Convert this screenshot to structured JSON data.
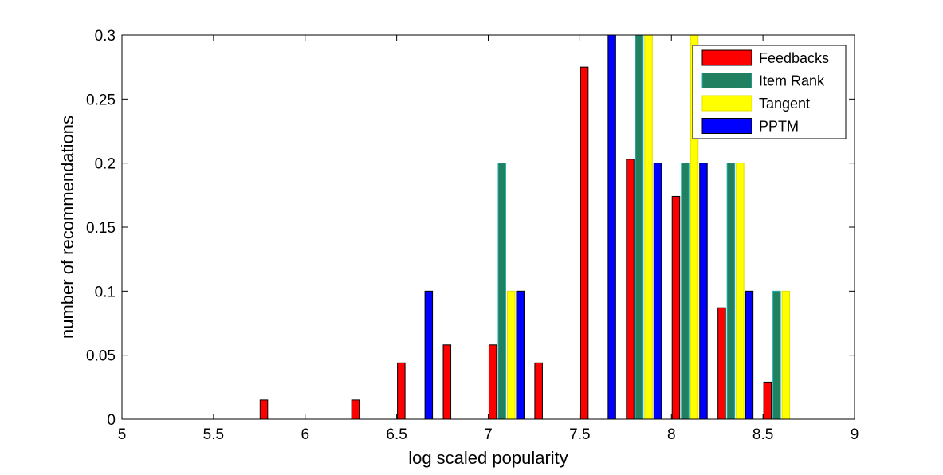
{
  "chart_data": {
    "type": "bar",
    "title": "",
    "xlabel": "log scaled popularity",
    "ylabel": "number of recommendations",
    "xlim": [
      5,
      9
    ],
    "ylim": [
      0,
      0.3
    ],
    "x_ticks": [
      "5",
      "5.5",
      "6",
      "6.5",
      "7",
      "7.5",
      "8",
      "8.5",
      "9"
    ],
    "y_ticks": [
      "0",
      "0.05",
      "0.1",
      "0.15",
      "0.2",
      "0.25",
      "0.3"
    ],
    "x": [
      5.1,
      5.35,
      5.6,
      5.85,
      6.1,
      6.35,
      6.6,
      6.85,
      7.1,
      7.35,
      7.6,
      7.85,
      8.1,
      8.35,
      8.6,
      8.85
    ],
    "series": [
      {
        "name": "Feedbacks",
        "color": "#ff0000",
        "values": [
          0,
          0,
          0,
          0.015,
          0,
          0.015,
          0.044,
          0.058,
          0.058,
          0.044,
          0.275,
          0.203,
          0.174,
          0.087,
          0.029,
          0
        ]
      },
      {
        "name": "Item Rank",
        "color": "#208060",
        "values": [
          0,
          0,
          0,
          0,
          0,
          0,
          0,
          0,
          0.2,
          0,
          0,
          0.3,
          0.2,
          0.2,
          0.1,
          0
        ]
      },
      {
        "name": "Tangent",
        "color": "#ffff00",
        "values": [
          0,
          0,
          0,
          0,
          0,
          0,
          0,
          0,
          0.1,
          0,
          0,
          0.3,
          0.3,
          0.2,
          0.1,
          0
        ]
      },
      {
        "name": "PPTM",
        "color": "#0000ff",
        "values": [
          0,
          0,
          0,
          0,
          0,
          0,
          0.1,
          0,
          0.1,
          0,
          0.3,
          0.2,
          0.2,
          0.1,
          0,
          0
        ]
      }
    ],
    "legend_position": "top-right",
    "grid": false
  }
}
